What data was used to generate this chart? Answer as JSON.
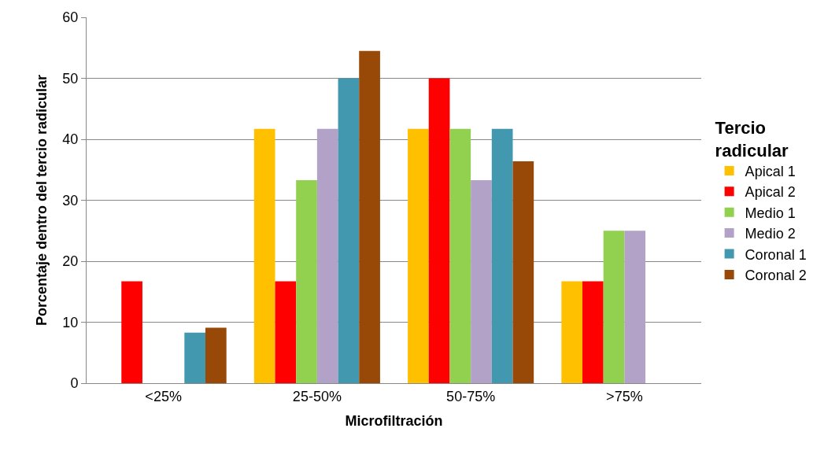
{
  "chart_data": {
    "type": "bar",
    "xlabel": "Microfiltración",
    "ylabel": "Porcentaje dentro del tercio radicular",
    "legend_title": "Tercio radicular",
    "categories": [
      "<25%",
      "25-50%",
      "50-75%",
      ">75%"
    ],
    "series": [
      {
        "name": "Apical 1",
        "color": "#ffc000",
        "values": [
          0,
          41.7,
          41.7,
          16.7
        ]
      },
      {
        "name": "Apical 2",
        "color": "#ff0000",
        "values": [
          16.7,
          16.7,
          50,
          16.7
        ]
      },
      {
        "name": "Medio 1",
        "color": "#92d050",
        "values": [
          0,
          33.3,
          41.7,
          25
        ]
      },
      {
        "name": "Medio 2",
        "color": "#b3a2c7",
        "values": [
          0,
          41.7,
          33.3,
          25
        ]
      },
      {
        "name": "Coronal 1",
        "color": "#4198af",
        "values": [
          8.3,
          50,
          41.7,
          0
        ]
      },
      {
        "name": "Coronal 2",
        "color": "#984807",
        "values": [
          9.1,
          54.5,
          36.4,
          0
        ]
      }
    ],
    "ylim": [
      0,
      60
    ],
    "yticks": [
      0,
      10,
      20,
      30,
      40,
      50,
      60
    ],
    "grid": "y",
    "legend": "right"
  }
}
